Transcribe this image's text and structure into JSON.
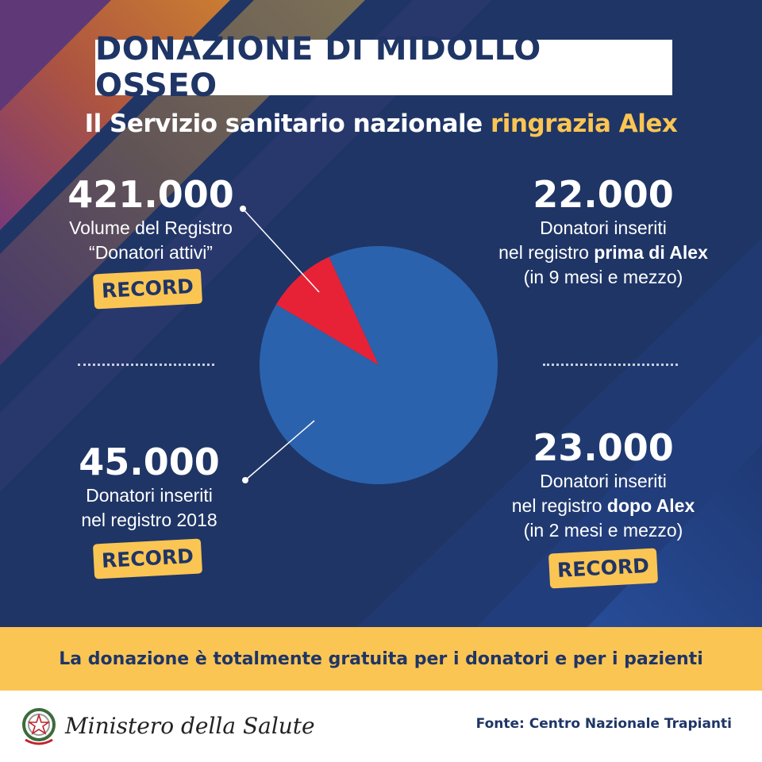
{
  "title": "DONAZIONE DI MIDOLLO OSSEO",
  "subtitle": {
    "main": "Il Servizio sanitario nazionale ",
    "accent": "ringrazia Alex"
  },
  "stats": {
    "registry": {
      "value": "421.000",
      "line1": "Volume del Registro",
      "line2": "“Donatori attivi”",
      "badge": "RECORD"
    },
    "year2018": {
      "value": "45.000",
      "line1": "Donatori inseriti",
      "line2": "nel registro 2018",
      "badge": "RECORD"
    },
    "before": {
      "value": "22.000",
      "line1": "Donatori inseriti",
      "line2_pre": "nel registro ",
      "line2_bold": "prima di Alex",
      "line3": "(in 9 mesi e mezzo)"
    },
    "after": {
      "value": "23.000",
      "line1": "Donatori inseriti",
      "line2_pre": "nel registro ",
      "line2_bold": "dopo Alex",
      "line3": "(in 2 mesi e mezzo)",
      "badge": "RECORD"
    }
  },
  "chart_data": {
    "type": "pie",
    "slices": [
      {
        "label": "Volume del Registro “Donatori attivi”",
        "value": 421000,
        "color": "#2b62ad"
      },
      {
        "label": "Donatori inseriti nel registro 2018",
        "value": 45000,
        "color": "#e82236"
      }
    ]
  },
  "banner": "La donazione è totalmente gratuita per i donatori e per i pazienti",
  "footer": {
    "ministry": "Ministero della Salute",
    "source": "Fonte: Centro Nazionale Trapianti"
  },
  "colors": {
    "background": "#1f3566",
    "accent": "#fbc553",
    "pie_main": "#2b62ad",
    "pie_slice": "#e82236"
  }
}
